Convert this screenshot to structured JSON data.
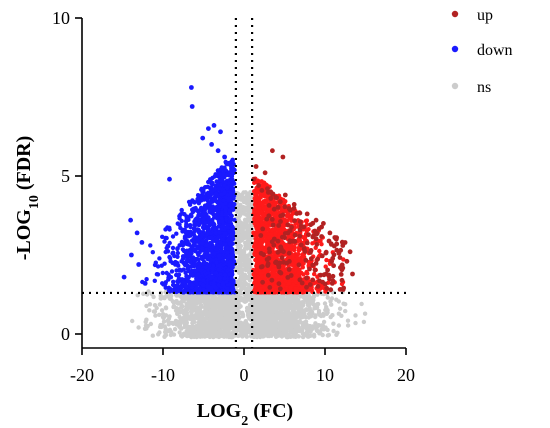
{
  "chart_data": {
    "type": "scatter",
    "title": "",
    "xlabel": {
      "main": "LOG",
      "sub": "2",
      "rest": " (FC)"
    },
    "ylabel": {
      "main": "-LOG",
      "sub": "10",
      "rest": " (FDR)"
    },
    "xlim": [
      -20,
      20
    ],
    "ylim": [
      -0.8,
      10
    ],
    "xticks": [
      -20,
      -10,
      0,
      10,
      20
    ],
    "xtick_labels": [
      "-20",
      "-10",
      "0",
      "10",
      "20"
    ],
    "yticks": [
      0,
      5,
      10
    ],
    "ytick_labels": [
      "0",
      "5",
      "10"
    ],
    "thresholds": {
      "fc_left": -1,
      "fc_right": 1,
      "fdr": 1.3
    },
    "legend_position": "top-right",
    "series": [
      {
        "name": "up",
        "color": "#b22222",
        "points": [
          [
            3.5,
            5.8
          ],
          [
            4.8,
            5.6
          ],
          [
            1.5,
            5.3
          ],
          [
            2.6,
            5.1
          ],
          [
            1.2,
            4.9
          ],
          [
            1.8,
            4.7
          ],
          [
            2.9,
            4.6
          ],
          [
            3.3,
            4.5
          ],
          [
            5.1,
            4.4
          ],
          [
            6.2,
            4.1
          ],
          [
            7.8,
            3.8
          ],
          [
            8.9,
            3.6
          ],
          [
            9.8,
            3.5
          ],
          [
            10.6,
            3.2
          ],
          [
            11.4,
            3.0
          ],
          [
            12.2,
            2.8
          ],
          [
            13.1,
            2.6
          ],
          [
            12.7,
            2.3
          ],
          [
            11.9,
            2.1
          ],
          [
            13.4,
            1.9
          ],
          [
            12.1,
            1.7
          ],
          [
            10.9,
            1.6
          ]
        ]
      },
      {
        "name": "down",
        "color": "#1a1aff",
        "points": [
          [
            -6.5,
            7.8
          ],
          [
            -6.4,
            7.2
          ],
          [
            -3.7,
            6.6
          ],
          [
            -4.4,
            6.5
          ],
          [
            -2.9,
            6.4
          ],
          [
            -5.1,
            6.2
          ],
          [
            -4.0,
            6.0
          ],
          [
            -3.2,
            5.8
          ],
          [
            -2.4,
            5.6
          ],
          [
            -9.2,
            4.9
          ],
          [
            -14.0,
            3.6
          ],
          [
            -13.2,
            3.2
          ],
          [
            -12.6,
            2.9
          ],
          [
            -13.9,
            2.5
          ],
          [
            -13.0,
            2.2
          ],
          [
            -14.8,
            1.8
          ],
          [
            -12.2,
            1.6
          ]
        ]
      },
      {
        "name": "ns",
        "color": "#cccccc",
        "points": []
      }
    ]
  }
}
